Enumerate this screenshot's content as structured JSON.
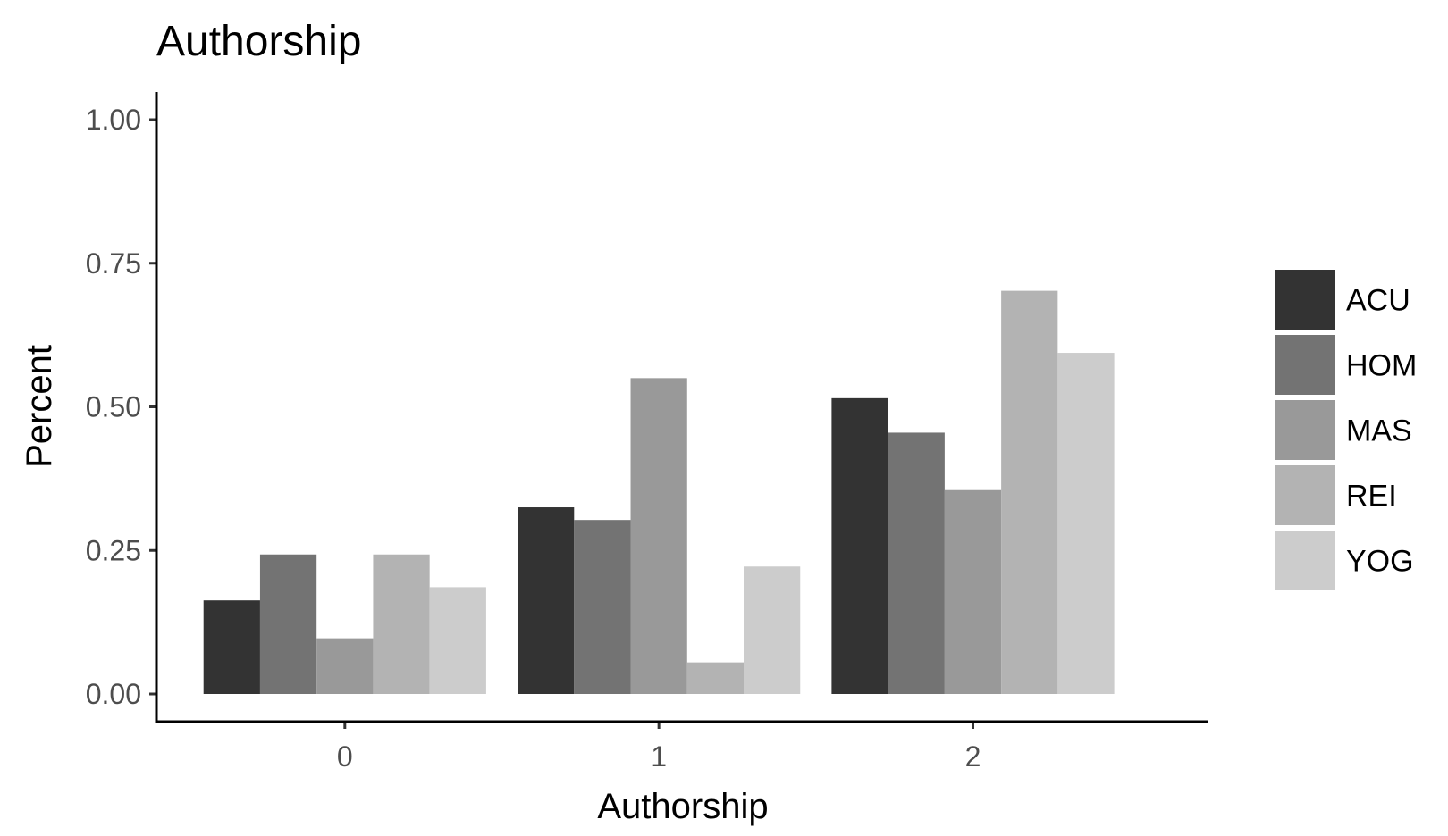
{
  "chart_data": {
    "type": "bar",
    "title": "Authorship",
    "xlabel": "Authorship",
    "ylabel": "Percent",
    "categories": [
      "0",
      "1",
      "2"
    ],
    "series": [
      {
        "name": "ACU",
        "color": "#333333",
        "values": [
          0.163,
          0.325,
          0.515
        ]
      },
      {
        "name": "HOM",
        "color": "#737373",
        "values": [
          0.243,
          0.303,
          0.455
        ]
      },
      {
        "name": "MAS",
        "color": "#999999",
        "values": [
          0.097,
          0.55,
          0.355
        ]
      },
      {
        "name": "REI",
        "color": "#b3b3b3",
        "values": [
          0.243,
          0.055,
          0.702
        ]
      },
      {
        "name": "YOG",
        "color": "#cccccc",
        "values": [
          0.186,
          0.222,
          0.594
        ]
      }
    ],
    "yticks": [
      "0.00",
      "0.25",
      "0.50",
      "0.75",
      "1.00"
    ],
    "ylim": [
      0,
      1
    ],
    "grid": false,
    "legend_position": "right"
  }
}
